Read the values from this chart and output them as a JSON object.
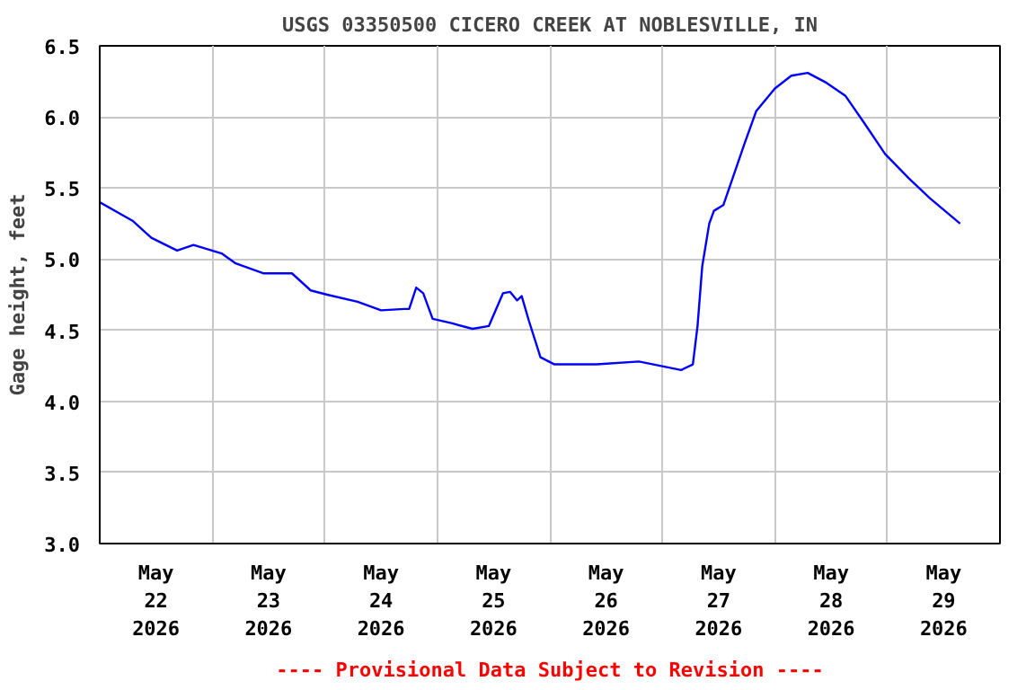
{
  "chart_data": {
    "type": "line",
    "title": "USGS 03350500 CICERO CREEK AT NOBLESVILLE, IN",
    "ylabel": "Gage height, feet",
    "annotations": [
      "---- Provisional Data Subject to Revision ----"
    ],
    "x": [
      "2026-05-22T00:00",
      "2026-05-22T07:00",
      "2026-05-22T11:00",
      "2026-05-22T16:30",
      "2026-05-22T20:00",
      "2026-05-23T02:00",
      "2026-05-23T05:00",
      "2026-05-23T11:00",
      "2026-05-23T17:00",
      "2026-05-23T21:00",
      "2026-05-24T00:30",
      "2026-05-24T07:00",
      "2026-05-24T12:00",
      "2026-05-24T17:00",
      "2026-05-24T18:00",
      "2026-05-24T19:30",
      "2026-05-24T21:00",
      "2026-05-24T23:00",
      "2026-05-25T03:00",
      "2026-05-25T07:30",
      "2026-05-25T11:00",
      "2026-05-25T14:00",
      "2026-05-25T15:30",
      "2026-05-25T17:00",
      "2026-05-25T18:00",
      "2026-05-25T19:30",
      "2026-05-25T22:00",
      "2026-05-26T01:00",
      "2026-05-26T10:00",
      "2026-05-26T19:00",
      "2026-05-26T23:30",
      "2026-05-27T04:00",
      "2026-05-27T06:30",
      "2026-05-27T07:30",
      "2026-05-27T08:30",
      "2026-05-27T10:00",
      "2026-05-27T11:00",
      "2026-05-27T13:00",
      "2026-05-27T15:00",
      "2026-05-27T17:30",
      "2026-05-27T20:00",
      "2026-05-28T00:00",
      "2026-05-28T03:30",
      "2026-05-28T07:00",
      "2026-05-28T11:00",
      "2026-05-28T15:00",
      "2026-05-28T19:00",
      "2026-05-28T23:30",
      "2026-05-29T04:30",
      "2026-05-29T09:00",
      "2026-05-29T15:30"
    ],
    "series": [
      {
        "color": "#0000ff",
        "values": [
          5.4,
          5.27,
          5.15,
          5.06,
          5.1,
          5.04,
          4.97,
          4.9,
          4.9,
          4.78,
          4.75,
          4.7,
          4.64,
          4.65,
          4.65,
          4.8,
          4.76,
          4.58,
          4.55,
          4.51,
          4.53,
          4.76,
          4.77,
          4.71,
          4.74,
          4.57,
          4.31,
          4.26,
          4.26,
          4.28,
          4.25,
          4.22,
          4.26,
          4.53,
          4.95,
          5.25,
          5.34,
          5.38,
          5.57,
          5.81,
          6.04,
          6.2,
          6.29,
          6.31,
          6.24,
          6.15,
          5.96,
          5.74,
          5.57,
          5.43,
          5.25
        ]
      }
    ],
    "xlim": [
      "2026-05-22T00:00",
      "2026-05-30T00:00"
    ],
    "xticks": [
      {
        "value": "2026-05-22T00:00",
        "label": null
      },
      {
        "value": "2026-05-22T12:00",
        "label": "May\n22\n2026"
      },
      {
        "value": "2026-05-23T00:00",
        "label": null
      },
      {
        "value": "2026-05-23T12:00",
        "label": "May\n23\n2026"
      },
      {
        "value": "2026-05-24T00:00",
        "label": null
      },
      {
        "value": "2026-05-24T12:00",
        "label": "May\n24\n2026"
      },
      {
        "value": "2026-05-25T00:00",
        "label": null
      },
      {
        "value": "2026-05-25T12:00",
        "label": "May\n25\n2026"
      },
      {
        "value": "2026-05-26T00:00",
        "label": null
      },
      {
        "value": "2026-05-26T12:00",
        "label": "May\n26\n2026"
      },
      {
        "value": "2026-05-27T00:00",
        "label": null
      },
      {
        "value": "2026-05-27T12:00",
        "label": "May\n27\n2026"
      },
      {
        "value": "2026-05-28T00:00",
        "label": null
      },
      {
        "value": "2026-05-28T12:00",
        "label": "May\n28\n2026"
      },
      {
        "value": "2026-05-29T00:00",
        "label": null
      },
      {
        "value": "2026-05-29T12:00",
        "label": "May\n29\n2026"
      },
      {
        "value": "2026-05-30T00:00",
        "label": null
      }
    ],
    "ylim": [
      3.0,
      6.5
    ],
    "yticks": [
      {
        "value": 3.0,
        "label": "3.0"
      },
      {
        "value": 3.5,
        "label": "3.5"
      },
      {
        "value": 4.0,
        "label": "4.0"
      },
      {
        "value": 4.5,
        "label": "4.5"
      },
      {
        "value": 5.0,
        "label": "5.0"
      },
      {
        "value": 5.5,
        "label": "5.5"
      },
      {
        "value": 6.0,
        "label": "6.0"
      },
      {
        "value": 6.5,
        "label": "6.5"
      }
    ],
    "grid": true
  }
}
